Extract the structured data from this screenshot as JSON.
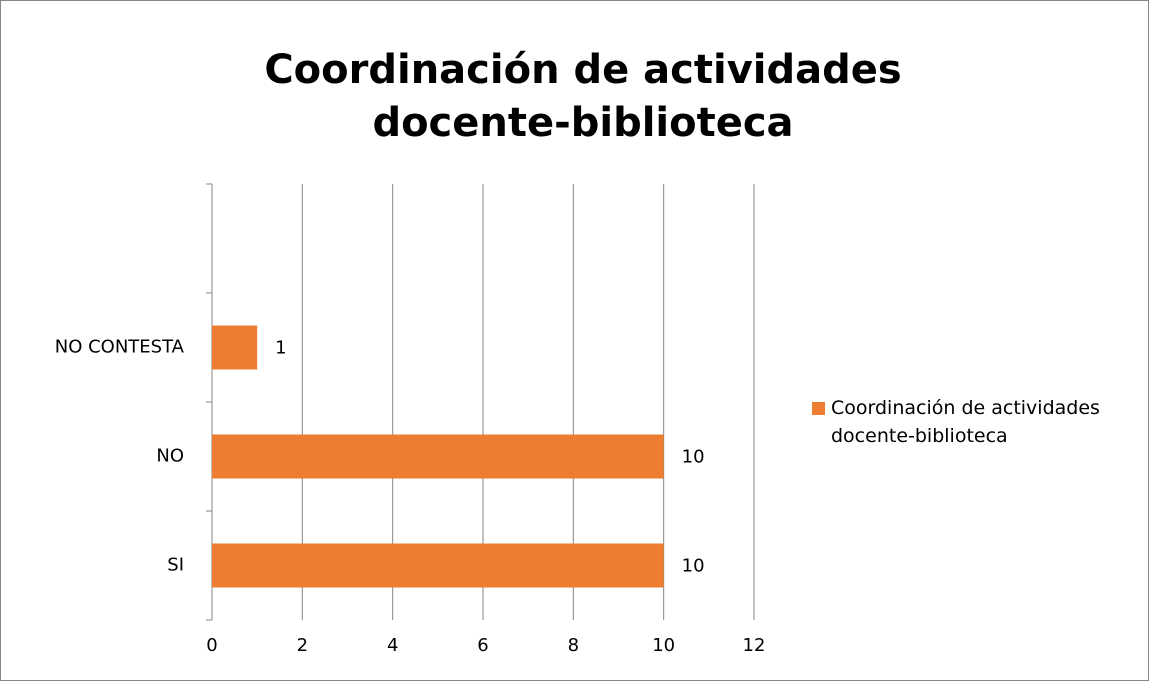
{
  "chart_data": {
    "type": "bar",
    "orientation": "horizontal",
    "title": "Coordinación de actividades docente-biblioteca",
    "categories": [
      "SI",
      "NO",
      "NO CONTESTA",
      null
    ],
    "series": [
      {
        "name": "Coordinación de actividades docente-biblioteca",
        "color": "#ed7d31",
        "values": [
          10,
          10,
          1,
          null
        ]
      }
    ],
    "xlim": [
      0,
      12
    ],
    "xticks": [
      0,
      2,
      4,
      6,
      8,
      10,
      12
    ],
    "grid": true,
    "legend": "right"
  }
}
